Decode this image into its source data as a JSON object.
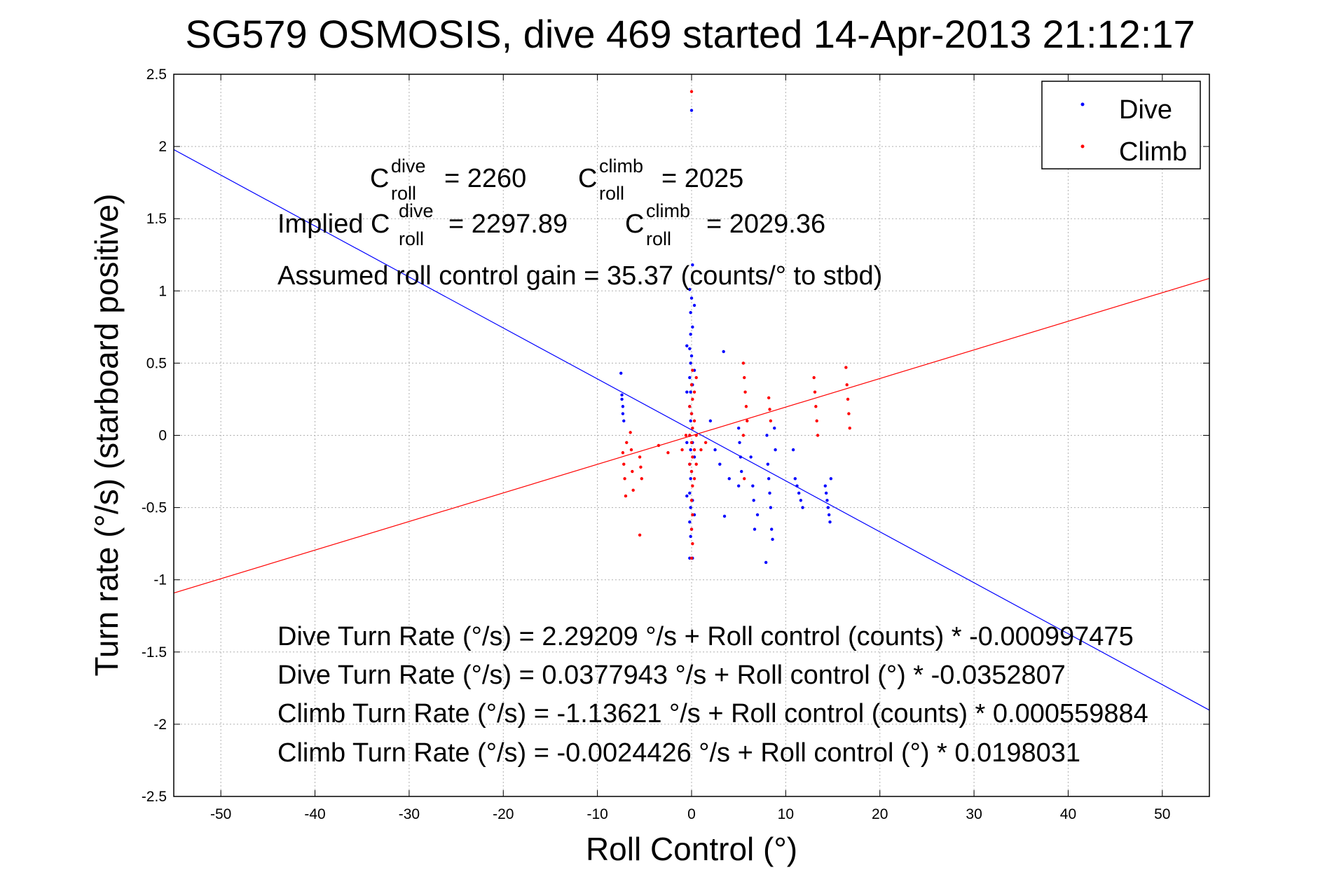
{
  "chart_data": {
    "type": "scatter",
    "title": "SG579 OSMOSIS, dive 469 started 14-Apr-2013 21:12:17",
    "xlabel": "Roll Control (°)",
    "ylabel": "Turn rate (°/s) (starboard positive)",
    "xlim": [
      -55,
      55
    ],
    "ylim": [
      -2.5,
      2.5
    ],
    "xticks": [
      "-50",
      "-40",
      "-30",
      "-20",
      "-10",
      "0",
      "10",
      "20",
      "30",
      "40",
      "50"
    ],
    "yticks": [
      "2.5",
      "2",
      "1.5",
      "1",
      "0.5",
      "0",
      "-0.5",
      "-1",
      "-1.5",
      "-2",
      "-2.5"
    ],
    "xtick_values": [
      -50,
      -40,
      -30,
      -20,
      -10,
      0,
      10,
      20,
      30,
      40,
      50
    ],
    "ytick_values": [
      2.5,
      2,
      1.5,
      1,
      0.5,
      0,
      -0.5,
      -1,
      -1.5,
      -2,
      -2.5
    ],
    "grid": true,
    "legend_position": "top-right",
    "series": [
      {
        "name": "Dive",
        "color": "#0000ff",
        "fit": {
          "intercept": 0.0377943,
          "slope": -0.0352807
        },
        "points": [
          [
            -7.5,
            0.43
          ],
          [
            -7.4,
            0.28
          ],
          [
            -7.4,
            0.25
          ],
          [
            -7.3,
            0.2
          ],
          [
            -7.3,
            0.15
          ],
          [
            -7.2,
            0.1
          ],
          [
            -0.2,
            1.01
          ],
          [
            -0.1,
            0.85
          ],
          [
            -0.1,
            0.7
          ],
          [
            -0.2,
            0.6
          ],
          [
            -0.1,
            0.5
          ],
          [
            -0.2,
            0.4
          ],
          [
            -0.1,
            0.3
          ],
          [
            -0.2,
            0.2
          ],
          [
            -0.1,
            0.1
          ],
          [
            -0.2,
            0.0
          ],
          [
            -0.1,
            -0.1
          ],
          [
            -0.2,
            -0.2
          ],
          [
            -0.1,
            -0.3
          ],
          [
            -0.2,
            -0.4
          ],
          [
            -0.1,
            -0.5
          ],
          [
            -0.2,
            -0.6
          ],
          [
            -0.1,
            -0.7
          ],
          [
            -0.2,
            -0.85
          ],
          [
            0.0,
            2.25
          ],
          [
            0.1,
            1.18
          ],
          [
            0.0,
            0.95
          ],
          [
            0.1,
            0.75
          ],
          [
            0.0,
            0.55
          ],
          [
            0.1,
            0.35
          ],
          [
            0.0,
            0.15
          ],
          [
            0.1,
            -0.05
          ],
          [
            0.0,
            -0.25
          ],
          [
            0.1,
            -0.45
          ],
          [
            0.0,
            -0.65
          ],
          [
            0.1,
            -0.85
          ],
          [
            0.3,
            0.9
          ],
          [
            0.3,
            0.45
          ],
          [
            0.3,
            -0.15
          ],
          [
            0.3,
            -0.55
          ],
          [
            -0.5,
            0.62
          ],
          [
            -0.5,
            0.3
          ],
          [
            -0.5,
            -0.05
          ],
          [
            -0.5,
            -0.42
          ],
          [
            2.0,
            0.1
          ],
          [
            2.5,
            -0.1
          ],
          [
            3.0,
            -0.2
          ],
          [
            3.4,
            0.58
          ],
          [
            3.5,
            -0.56
          ],
          [
            4.0,
            -0.3
          ],
          [
            5.0,
            0.05
          ],
          [
            5.1,
            -0.05
          ],
          [
            5.2,
            -0.15
          ],
          [
            5.3,
            -0.25
          ],
          [
            5.0,
            -0.35
          ],
          [
            6.3,
            -0.15
          ],
          [
            6.5,
            -0.35
          ],
          [
            6.6,
            -0.45
          ],
          [
            6.7,
            -0.65
          ],
          [
            7.0,
            -0.55
          ],
          [
            8.0,
            0.0
          ],
          [
            8.1,
            -0.2
          ],
          [
            8.2,
            -0.3
          ],
          [
            8.3,
            -0.4
          ],
          [
            8.4,
            -0.5
          ],
          [
            8.5,
            -0.65
          ],
          [
            8.6,
            -0.72
          ],
          [
            7.9,
            -0.88
          ],
          [
            8.8,
            0.05
          ],
          [
            8.9,
            -0.1
          ],
          [
            10.8,
            -0.1
          ],
          [
            11.0,
            -0.3
          ],
          [
            11.2,
            -0.35
          ],
          [
            11.4,
            -0.4
          ],
          [
            11.6,
            -0.45
          ],
          [
            11.8,
            -0.5
          ],
          [
            14.2,
            -0.35
          ],
          [
            14.3,
            -0.4
          ],
          [
            14.4,
            -0.45
          ],
          [
            14.5,
            -0.5
          ],
          [
            14.6,
            -0.55
          ],
          [
            14.7,
            -0.6
          ],
          [
            14.8,
            -0.3
          ]
        ]
      },
      {
        "name": "Climb",
        "color": "#ff0000",
        "fit": {
          "intercept": -0.0024426,
          "slope": 0.0198031
        },
        "points": [
          [
            0.0,
            2.38
          ],
          [
            0.1,
            0.45
          ],
          [
            0.0,
            0.35
          ],
          [
            0.1,
            0.25
          ],
          [
            0.0,
            0.15
          ],
          [
            0.1,
            0.05
          ],
          [
            0.0,
            -0.05
          ],
          [
            0.1,
            -0.15
          ],
          [
            0.0,
            -0.25
          ],
          [
            0.1,
            -0.35
          ],
          [
            0.0,
            -0.45
          ],
          [
            0.1,
            -0.55
          ],
          [
            0.0,
            -0.65
          ],
          [
            0.1,
            -0.75
          ],
          [
            0.0,
            -0.85
          ],
          [
            0.3,
            0.3
          ],
          [
            0.3,
            0.1
          ],
          [
            0.3,
            -0.1
          ],
          [
            0.3,
            -0.3
          ],
          [
            -0.2,
            0.2
          ],
          [
            -0.2,
            0.0
          ],
          [
            -0.2,
            -0.2
          ],
          [
            0.5,
            0.4
          ],
          [
            0.5,
            0.0
          ],
          [
            0.5,
            -0.2
          ],
          [
            1.0,
            -0.1
          ],
          [
            1.5,
            -0.05
          ],
          [
            -0.6,
            0.0
          ],
          [
            -1.0,
            -0.1
          ],
          [
            -7.3,
            -0.12
          ],
          [
            -7.2,
            -0.2
          ],
          [
            -7.1,
            -0.3
          ],
          [
            -7.0,
            -0.42
          ],
          [
            -6.9,
            -0.05
          ],
          [
            -6.5,
            0.02
          ],
          [
            -6.4,
            -0.1
          ],
          [
            -6.3,
            -0.25
          ],
          [
            -6.2,
            -0.38
          ],
          [
            -5.5,
            -0.15
          ],
          [
            -5.4,
            -0.22
          ],
          [
            -5.3,
            -0.3
          ],
          [
            -5.5,
            -0.69
          ],
          [
            -3.5,
            -0.07
          ],
          [
            -2.5,
            -0.12
          ],
          [
            5.5,
            0.5
          ],
          [
            5.6,
            0.4
          ],
          [
            5.7,
            0.3
          ],
          [
            5.8,
            0.2
          ],
          [
            5.9,
            0.1
          ],
          [
            5.5,
            0.0
          ],
          [
            5.6,
            -0.3
          ],
          [
            8.2,
            0.26
          ],
          [
            8.3,
            0.18
          ],
          [
            8.4,
            0.1
          ],
          [
            13.0,
            0.4
          ],
          [
            13.1,
            0.3
          ],
          [
            13.2,
            0.2
          ],
          [
            13.3,
            0.1
          ],
          [
            13.4,
            0.0
          ],
          [
            16.4,
            0.47
          ],
          [
            16.5,
            0.35
          ],
          [
            16.6,
            0.25
          ],
          [
            16.7,
            0.15
          ],
          [
            16.8,
            0.05
          ]
        ]
      }
    ],
    "annotations": {
      "c_dive_prefix": "C",
      "c_dive_sup": "dive",
      "c_dive_sub": "roll",
      "c_dive_value": "= 2260",
      "c_climb_prefix": "C",
      "c_climb_sup": "climb",
      "c_climb_sub": "roll",
      "c_climb_value": "= 2025",
      "implied_prefix": "Implied C",
      "implied_dive_sup": "dive",
      "implied_dive_sub": "roll",
      "implied_dive_value": "= 2297.89",
      "implied_climb_prefix": "C",
      "implied_climb_sup": "climb",
      "implied_climb_sub": "roll",
      "implied_climb_value": "= 2029.36",
      "gain": "Assumed roll control gain = 35.37 (counts/° to stbd)",
      "dive_eq_counts": "Dive Turn Rate (°/s) = 2.29209 °/s + Roll control (counts) * -0.000997475",
      "dive_eq_deg": "Dive Turn Rate (°/s) = 0.0377943 °/s + Roll control (°) * -0.0352807",
      "climb_eq_counts": "Climb Turn Rate (°/s) = -1.13621 °/s + Roll control (counts) * 0.000559884",
      "climb_eq_deg": "Climb Turn Rate (°/s) = -0.0024426 °/s + Roll control (°) * 0.0198031"
    }
  }
}
